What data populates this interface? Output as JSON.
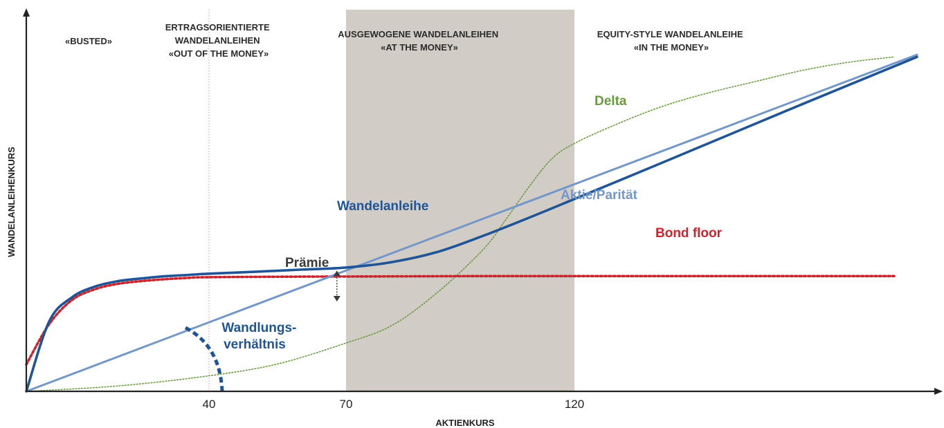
{
  "chart_data": {
    "type": "line",
    "title": "",
    "xlabel": "AKTIENKURS",
    "ylabel": "WANDELANLEIHENKURS",
    "x_ticks": [
      40,
      70,
      120
    ],
    "y_ticks": [],
    "grid": false,
    "colors": {
      "convertible": "#1f5597",
      "parity": "#7397c9",
      "bond_floor": "#c8272f",
      "delta": "#6a9a3f",
      "conversion_ratio": "#1f5597",
      "premium": "#3a3a3a",
      "balanced_zone": "#d1ccc5",
      "divider": "#d9a5a8",
      "axis": "#222222"
    },
    "regions": [
      {
        "name": "busted",
        "lines": [
          "«BUSTED»"
        ]
      },
      {
        "name": "out-of-the-money",
        "lines": [
          "ERTRAGSORIENTIERTE",
          "WANDELANLEIHEN",
          "«OUT OF THE MONEY»"
        ]
      },
      {
        "name": "at-the-money",
        "lines": [
          "AUSGEWOGENE WANDELANLEIHEN",
          "«AT THE MONEY»"
        ],
        "x_from": 70,
        "x_to": 120,
        "shaded": true
      },
      {
        "name": "in-the-money",
        "lines": [
          "EQUITY-STYLE WANDELANLEIHE",
          "«IN THE MONEY»"
        ]
      }
    ],
    "region_boundaries": [
      40,
      70,
      120
    ],
    "series": [
      {
        "name": "Wandelanleihe",
        "style": "solid-thick",
        "color": "#1f5597",
        "x": [
          0,
          5,
          10,
          15,
          20,
          25,
          30,
          35,
          40,
          50,
          60,
          70,
          80,
          90,
          100,
          110,
          120,
          130,
          140,
          150,
          160,
          170,
          180,
          190,
          195
        ],
        "y": [
          0,
          26,
          35,
          39,
          41,
          42,
          42.8,
          43.3,
          43.8,
          44.5,
          45.3,
          46.1,
          48.1,
          51.9,
          57.9,
          64.6,
          71.6,
          78.6,
          85.7,
          92.8,
          99.9,
          107,
          114,
          121,
          124.5
        ]
      },
      {
        "name": "Aktie/Parität",
        "style": "solid",
        "color": "#7397c9",
        "x": [
          0,
          195
        ],
        "y": [
          0,
          125.3
        ]
      },
      {
        "name": "Bond floor",
        "style": "dotted-thick",
        "color": "#c8272f",
        "x": [
          0,
          5,
          10,
          15,
          20,
          25,
          30,
          35,
          40,
          60,
          80,
          100,
          120,
          140,
          160,
          180,
          190
        ],
        "y": [
          10,
          25,
          34,
          38,
          40,
          41,
          41.7,
          42.2,
          42.5,
          42.7,
          42.8,
          42.9,
          42.9,
          42.9,
          42.9,
          42.9,
          42.9
        ]
      },
      {
        "name": "Delta",
        "style": "dotted-thin",
        "color": "#6a9a3f",
        "x": [
          0,
          20,
          40,
          55,
          70,
          80,
          90,
          100,
          105,
          110,
          115,
          120,
          130,
          140,
          150,
          160,
          170,
          180,
          190
        ],
        "y": [
          0,
          2,
          5.8,
          10.2,
          18,
          24.5,
          36.8,
          52.8,
          64,
          76,
          86.5,
          92.3,
          100,
          106.5,
          111.4,
          115.5,
          119.5,
          122.5,
          124.5
        ]
      }
    ],
    "annotations": [
      {
        "text": "Prämie",
        "type": "double-arrow",
        "x": 68,
        "y_from": 35,
        "y_to": 46
      },
      {
        "lines": [
          "Wandlungs-",
          "verhältnis"
        ],
        "type": "arc",
        "color": "#1f5597"
      }
    ],
    "xlim": [
      0,
      200
    ],
    "ylim": [
      0,
      130
    ]
  }
}
